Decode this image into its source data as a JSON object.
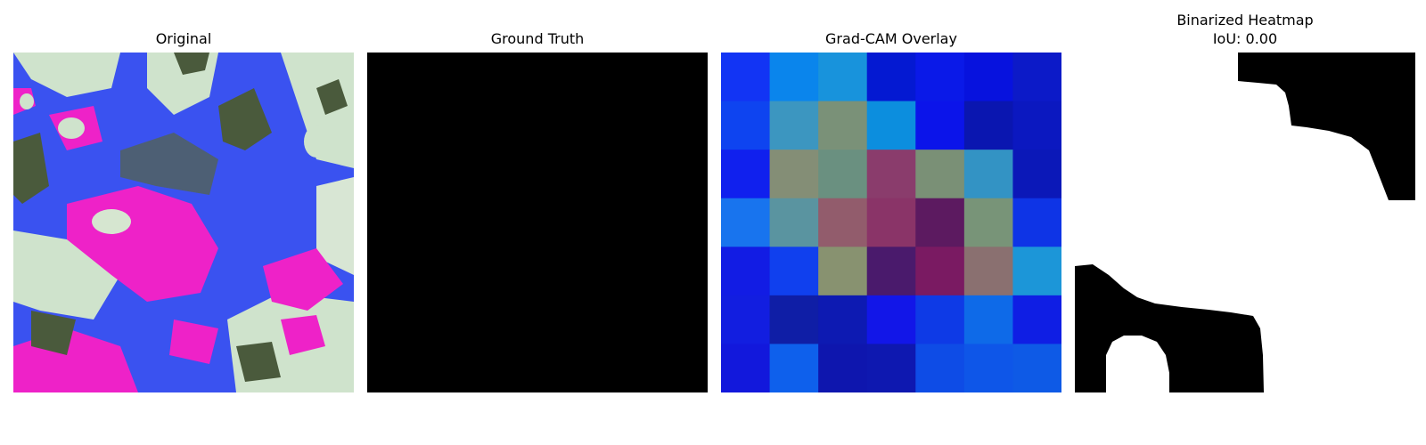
{
  "panels": {
    "original": {
      "title": "Original"
    },
    "ground_truth": {
      "title": "Ground Truth"
    },
    "gradcam": {
      "title": "Grad-CAM Overlay",
      "grid_colors": [
        [
          "#1234f4",
          "#0a85ec",
          "#1893dc",
          "#0419d2",
          "#0a19e8",
          "#0712de",
          "#0c1ac8"
        ],
        [
          "#0e44f0",
          "#3c96c0",
          "#7a9178",
          "#0c8ede",
          "#0b14ea",
          "#0a16b0",
          "#0b18c0"
        ],
        [
          "#1020ee",
          "#848e76",
          "#6a9080",
          "#8a3c6c",
          "#7a9076",
          "#3393c4",
          "#0b18b8"
        ],
        [
          "#1874ee",
          "#5a94a0",
          "#925c6c",
          "#8a3468",
          "#5c1a60",
          "#789478",
          "#0e34e6"
        ],
        [
          "#121ce4",
          "#1040ee",
          "#889270",
          "#4a1a6c",
          "#7a1a62",
          "#8a7070",
          "#1c96d8"
        ],
        [
          "#121ee0",
          "#0f1ea6",
          "#0d1ab2",
          "#1216e8",
          "#0e3ae6",
          "#0e6ae8",
          "#0f1ee4"
        ],
        [
          "#1218dc",
          "#0e60ec",
          "#0e16ae",
          "#0e18b0",
          "#0e4ce6",
          "#0e56e8",
          "#0e5ae6"
        ]
      ]
    },
    "binarized": {
      "title_line1": "Binarized Heatmap",
      "title_line2": "IoU: 0.00"
    }
  },
  "colors": {
    "magenta": "#ee22c8",
    "blue": "#3a52f0",
    "pale_green": "#cfe3cc",
    "dark_olive": "#4a5a3c",
    "black": "#000000",
    "white": "#ffffff"
  }
}
